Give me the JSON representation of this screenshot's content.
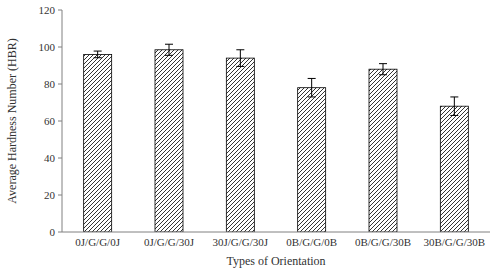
{
  "chart_data": {
    "type": "bar",
    "x_label": "Types of Orientation",
    "y_label": "Average Hardness Number (HBR)",
    "categories": [
      "0J/G/G/0J",
      "0J/G/G/30J",
      "30J/G/G/30J",
      "0B/G/G/0B",
      "0B/G/G/30B",
      "30B/G/G/30B"
    ],
    "values": [
      96,
      98.5,
      94,
      78,
      88,
      68
    ],
    "errors": [
      1.8,
      3,
      4.5,
      5,
      3,
      5
    ],
    "color": "#000000",
    "ylim": [
      0,
      120
    ],
    "yticks": [
      0,
      20,
      40,
      60,
      80,
      100,
      120
    ],
    "grid": false
  }
}
